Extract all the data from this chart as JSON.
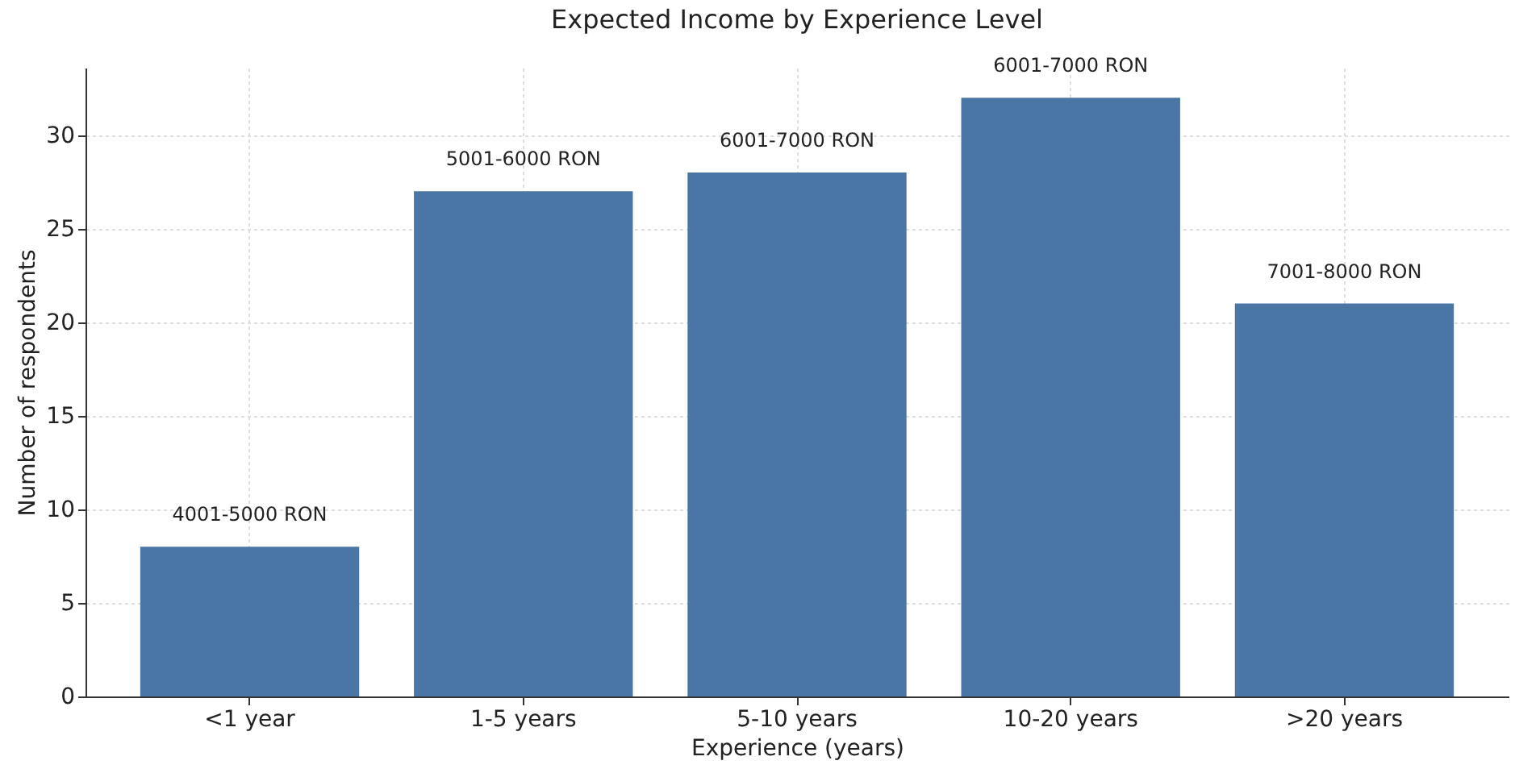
{
  "chart_data": {
    "type": "bar",
    "title": "Expected Income by Experience Level",
    "xlabel": "Experience (years)",
    "ylabel": "Number of respondents",
    "categories": [
      "<1 year",
      "1-5 years",
      "5-10 years",
      "10-20 years",
      ">20 years"
    ],
    "values": [
      8,
      27,
      28,
      32,
      21
    ],
    "value_labels": [
      "4001-5000 RON",
      "5001-6000 RON",
      "6001-7000 RON",
      "6001-7000 RON",
      "7001-8000 RON"
    ],
    "color": "#4a76a5",
    "ylim": [
      0,
      33.6
    ],
    "yticks": [
      0,
      5,
      10,
      15,
      20,
      25,
      30
    ],
    "grid": true
  }
}
